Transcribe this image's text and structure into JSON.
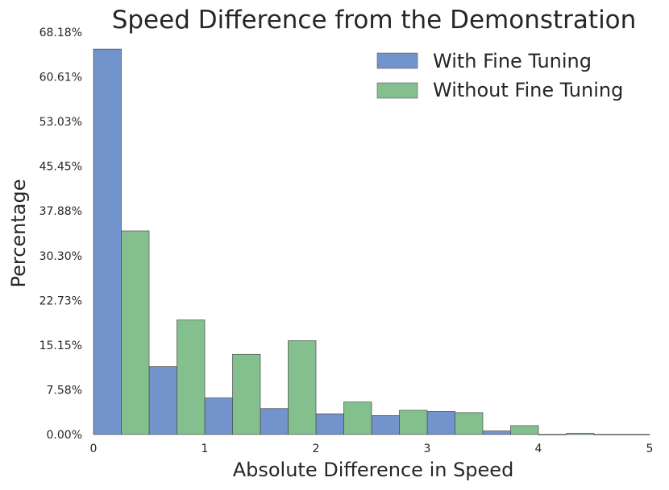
{
  "chart_data": {
    "type": "bar",
    "title": "Speed Difference from the Demonstration",
    "xlabel": "Absolute Difference in Speed",
    "ylabel": "Percentage",
    "xlim": [
      0,
      5
    ],
    "ylim": [
      0,
      68.18
    ],
    "x_ticks": [
      "0",
      "1",
      "2",
      "3",
      "4",
      "5"
    ],
    "y_ticks": [
      "0.00%",
      "7.58%",
      "15.15%",
      "22.73%",
      "30.30%",
      "37.88%",
      "45.45%",
      "53.03%",
      "60.61%",
      "68.18%"
    ],
    "bin_width": 0.5,
    "bin_starts": [
      0,
      0.5,
      1.0,
      1.5,
      2.0,
      2.5,
      3.0,
      3.5,
      4.0,
      4.5
    ],
    "grid": false,
    "legend_position": "top-right",
    "series": [
      {
        "name": "With Fine Tuning",
        "color": "#7293cb",
        "values": [
          65.3,
          11.5,
          6.2,
          4.4,
          3.5,
          3.2,
          3.9,
          0.6,
          0.0,
          0.0
        ]
      },
      {
        "name": "Without Fine Tuning",
        "color": "#84c08d",
        "values": [
          34.5,
          19.4,
          13.6,
          15.9,
          5.5,
          4.1,
          3.7,
          1.5,
          0.2,
          0.0
        ]
      }
    ]
  }
}
